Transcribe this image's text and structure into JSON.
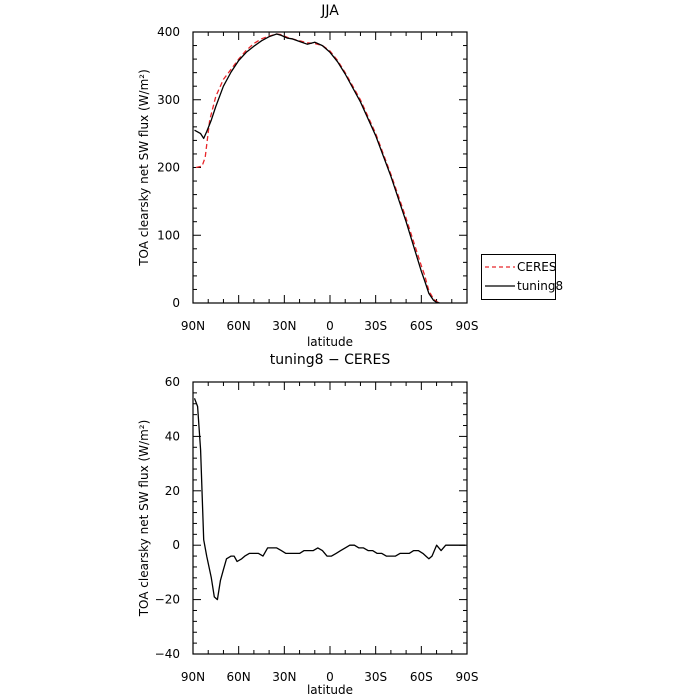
{
  "chart_data": [
    {
      "type": "line",
      "title": "JJA",
      "xlabel": "latitude",
      "ylabel": "TOA clearsky net SW flux (W/m²)",
      "xlim": [
        -90,
        90
      ],
      "ylim": [
        0,
        400
      ],
      "x_ticks": [
        -90,
        -60,
        -30,
        0,
        30,
        60,
        90
      ],
      "x_tick_labels": [
        "90N",
        "60N",
        "30N",
        "0",
        "30S",
        "60S",
        "90S"
      ],
      "y_ticks": [
        0,
        100,
        200,
        300,
        400
      ],
      "y_tick_labels": [
        "0",
        "100",
        "200",
        "300",
        "400"
      ],
      "legend_position": "right",
      "series": [
        {
          "name": "CERES",
          "color": "#e8262a",
          "dash": "dashed",
          "x": [
            -88,
            -84,
            -82,
            -79,
            -75,
            -70,
            -65,
            -60,
            -55,
            -50,
            -45,
            -40,
            -35,
            -32,
            -28,
            -25,
            -20,
            -15,
            -10,
            -5,
            0,
            5,
            10,
            20,
            30,
            40,
            50,
            60,
            62,
            65,
            68,
            70,
            72
          ],
          "y": [
            200,
            202,
            215,
            270,
            305,
            330,
            345,
            360,
            373,
            383,
            390,
            394,
            397,
            396,
            392,
            390,
            387,
            384,
            383,
            380,
            372,
            358,
            340,
            300,
            250,
            190,
            125,
            55,
            42,
            18,
            6,
            2,
            0
          ]
        },
        {
          "name": "tuning8",
          "color": "#000000",
          "dash": "solid",
          "x": [
            -89,
            -85,
            -83,
            -81,
            -78,
            -75,
            -70,
            -65,
            -60,
            -55,
            -50,
            -45,
            -40,
            -35,
            -32,
            -28,
            -25,
            -20,
            -15,
            -10,
            -5,
            0,
            5,
            10,
            20,
            30,
            40,
            50,
            60,
            62,
            65,
            68,
            70,
            72
          ],
          "y": [
            255,
            250,
            243,
            253,
            270,
            290,
            320,
            341,
            358,
            370,
            379,
            387,
            393,
            397,
            395,
            391,
            390,
            386,
            382,
            385,
            380,
            370,
            356,
            338,
            297,
            247,
            187,
            120,
            47,
            34,
            14,
            4,
            1,
            0
          ]
        }
      ]
    },
    {
      "type": "line",
      "title": "tuning8 − CERES",
      "xlabel": "latitude",
      "ylabel": "TOA clearsky net SW flux (W/m²)",
      "xlim": [
        -90,
        90
      ],
      "ylim": [
        -40,
        60
      ],
      "x_ticks": [
        -90,
        -60,
        -30,
        0,
        30,
        60,
        90
      ],
      "x_tick_labels": [
        "90N",
        "60N",
        "30N",
        "0",
        "30S",
        "60S",
        "90S"
      ],
      "y_ticks": [
        -40,
        -20,
        0,
        20,
        40,
        60
      ],
      "y_tick_labels": [
        "−40",
        "−20",
        "0",
        "20",
        "40",
        "60"
      ],
      "series": [
        {
          "name": "",
          "color": "#000000",
          "dash": "solid",
          "x": [
            -89,
            -87,
            -85,
            -83,
            -81,
            -78,
            -76,
            -74,
            -72,
            -70,
            -68,
            -65,
            -63,
            -61,
            -58,
            -56,
            -53,
            -50,
            -47,
            -44,
            -41,
            -38,
            -35,
            -32,
            -29,
            -26,
            -23,
            -20,
            -17,
            -14,
            -11,
            -8,
            -5,
            -2,
            1,
            4,
            7,
            10,
            13,
            16,
            19,
            22,
            25,
            28,
            31,
            34,
            37,
            40,
            43,
            46,
            49,
            52,
            55,
            58,
            61,
            63,
            65,
            67,
            70,
            73,
            76,
            80,
            85,
            89
          ],
          "y": [
            54,
            51,
            35,
            2,
            -4,
            -12,
            -19,
            -20,
            -13,
            -9,
            -5,
            -4,
            -4,
            -6,
            -5,
            -4,
            -3,
            -3,
            -3,
            -4,
            -1,
            -1,
            -1,
            -2,
            -3,
            -3,
            -3,
            -3,
            -2,
            -2,
            -2,
            -1,
            -2,
            -4,
            -4,
            -3,
            -2,
            -1,
            0,
            0,
            -1,
            -1,
            -2,
            -2,
            -3,
            -3,
            -4,
            -4,
            -4,
            -3,
            -3,
            -3,
            -2,
            -2,
            -3,
            -4,
            -5,
            -4,
            0,
            -2,
            0,
            0,
            0,
            0
          ]
        }
      ]
    }
  ],
  "legend": {
    "items": [
      {
        "label": "CERES",
        "color": "#e8262a",
        "dash": "dashed"
      },
      {
        "label": "tuning8",
        "color": "#000000",
        "dash": "solid"
      }
    ]
  }
}
